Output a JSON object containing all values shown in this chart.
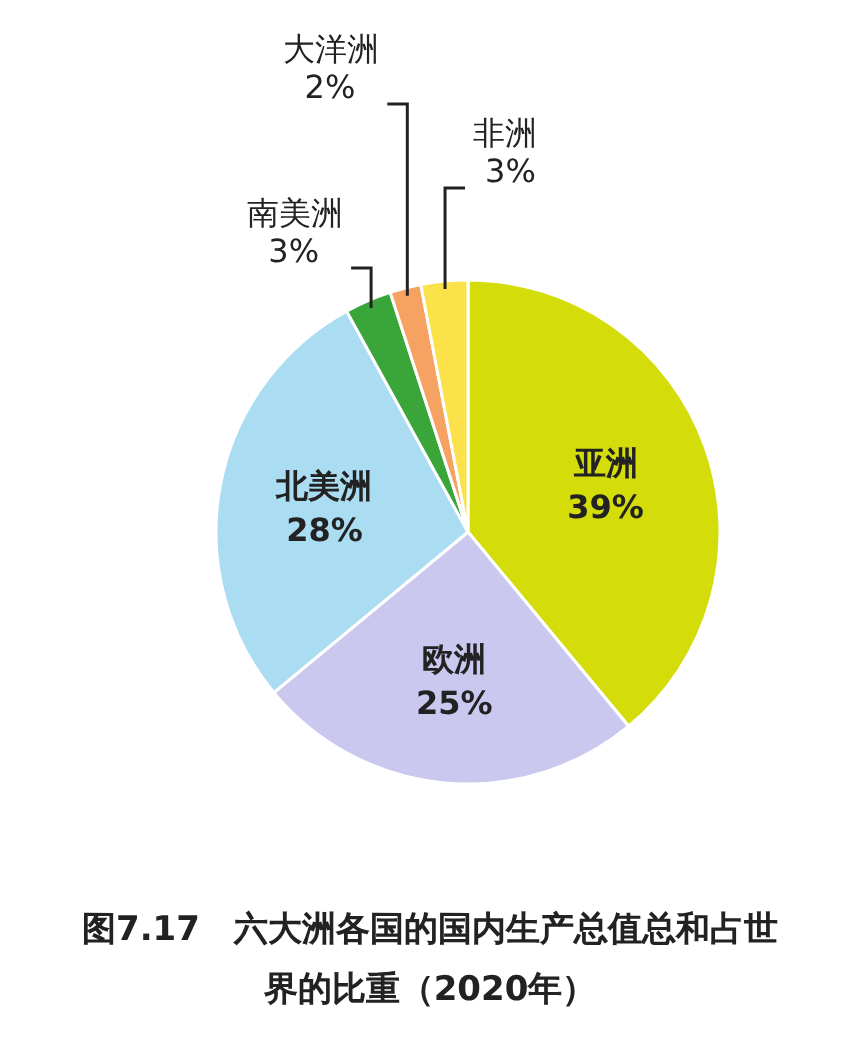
{
  "chart_data": {
    "type": "pie",
    "title": "图7.17　六大洲各国的国内生产总值总和占世界的比重（2020年）",
    "categories": [
      "亚洲",
      "欧洲",
      "北美洲",
      "南美洲",
      "大洋洲",
      "非洲"
    ],
    "values": [
      39,
      25,
      28,
      3,
      2,
      3
    ],
    "value_labels": [
      "39%",
      "25%",
      "28%",
      "3%",
      "2%",
      "3%"
    ],
    "colors": [
      "#d4dc0a",
      "#cbc8f0",
      "#aadcf2",
      "#3aa63a",
      "#f6a262",
      "#fbe14a"
    ]
  }
}
